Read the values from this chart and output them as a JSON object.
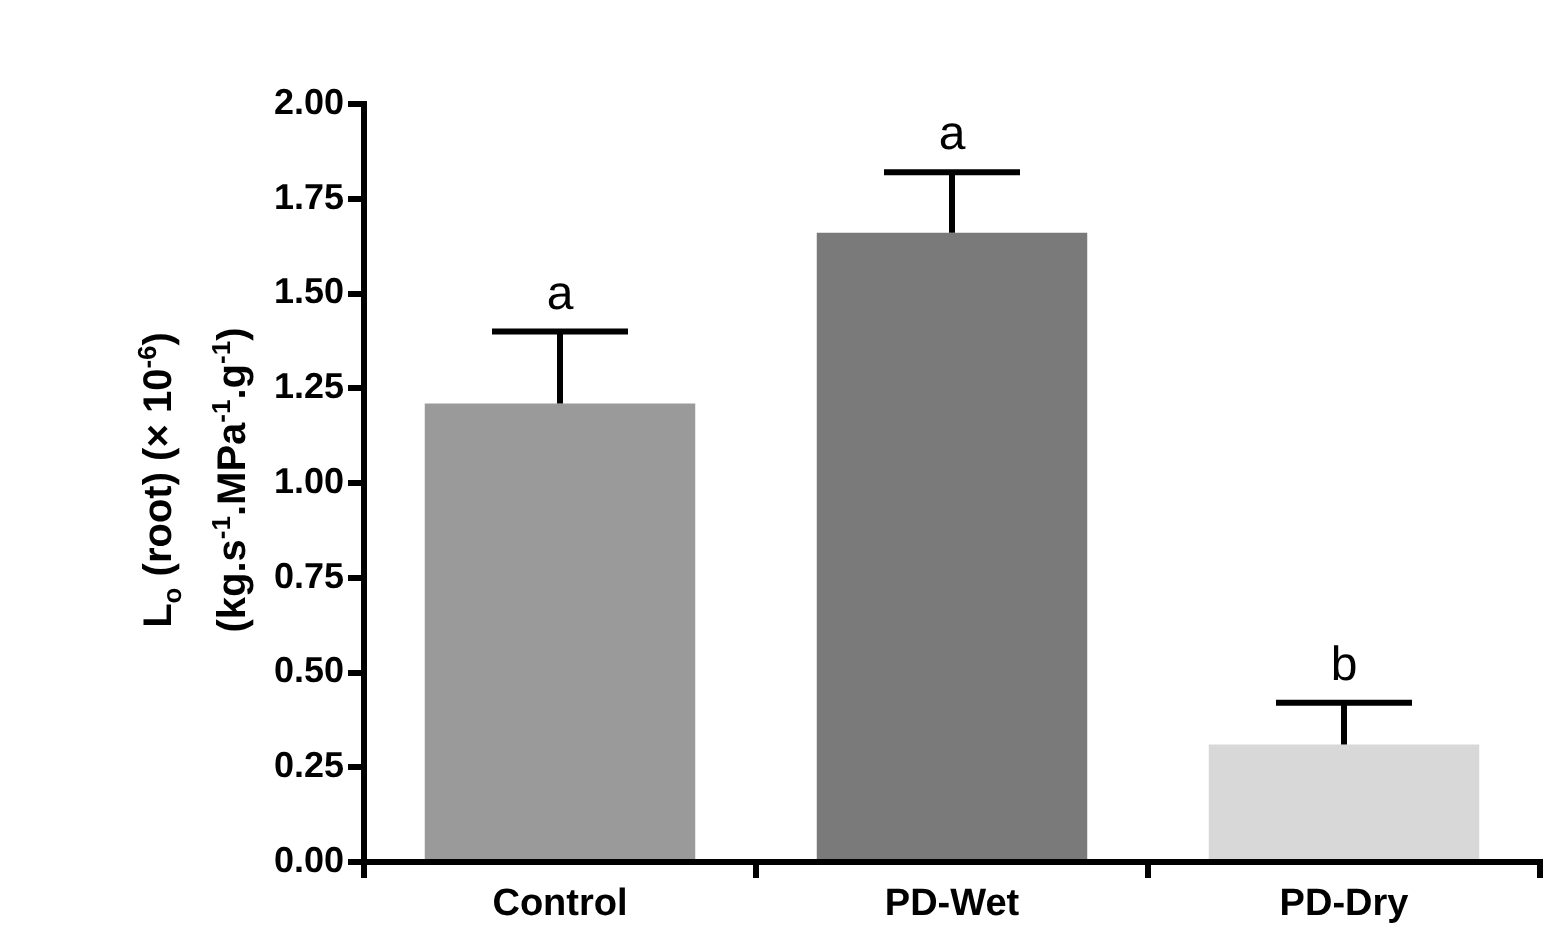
{
  "chart_data": {
    "type": "bar",
    "ylabel": "L$_{o}$ (root) (× 10$^{-6}$)\n(kg.s$^{-1}$.MPa$^{-1}$.g$^{-1}$)",
    "categories": [
      "Control",
      "PD-Wet",
      "PD-Dry"
    ],
    "values": [
      1.21,
      1.66,
      0.31
    ],
    "errors": [
      0.19,
      0.16,
      0.11
    ],
    "colors": [
      "#9a9a9a",
      "#7a7a7a",
      "#d8d8d8"
    ],
    "ylim": [
      0,
      2
    ],
    "yticks": [
      {
        "value": 0,
        "label": "0.00"
      },
      {
        "value": 0.25,
        "label": "0.25"
      },
      {
        "value": 0.5,
        "label": "0.50"
      },
      {
        "value": 0.75,
        "label": "0.75"
      },
      {
        "value": 1,
        "label": "1.00"
      },
      {
        "value": 1.25,
        "label": "1.25"
      },
      {
        "value": 1.5,
        "label": "1.50"
      },
      {
        "value": 1.75,
        "label": "1.75"
      },
      {
        "value": 2,
        "label": "2.00"
      }
    ],
    "grid": false,
    "legend": false,
    "annotations": [
      {
        "text": "a",
        "x": "Control",
        "y": 1.4
      },
      {
        "text": "a",
        "x": "PD-Wet",
        "y": 1.82
      },
      {
        "text": "b",
        "x": "PD-Dry",
        "y": 0.42
      }
    ]
  }
}
